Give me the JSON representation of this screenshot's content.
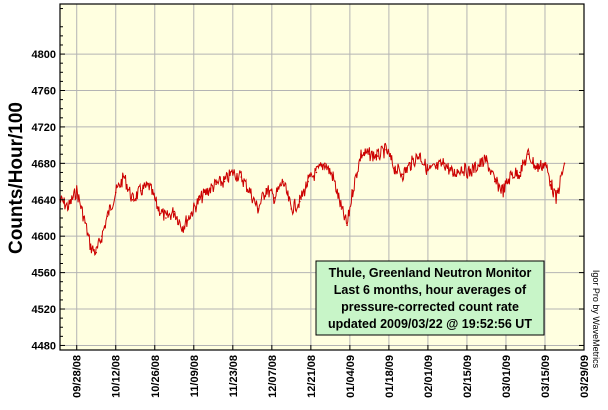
{
  "chart_data": {
    "type": "line",
    "ylabel": "Counts/Hour/100",
    "ylim": [
      4475,
      4855
    ],
    "yticks": [
      4480,
      4520,
      4560,
      4600,
      4640,
      4680,
      4720,
      4760,
      4800
    ],
    "xlim": [
      "2008-09-22",
      "2009-03-29"
    ],
    "xticks": [
      "09/28/08",
      "10/12/08",
      "10/26/08",
      "11/09/08",
      "11/23/08",
      "12/07/08",
      "12/21/08",
      "01/04/09",
      "01/18/09",
      "02/01/09",
      "02/15/09",
      "03/01/09",
      "03/15/09",
      "03/29/09"
    ],
    "grid": true,
    "series_color": "#cc0000",
    "plot_background": "#ffffe0",
    "info_box_background": "#c8f5c8",
    "series": [
      {
        "x": [
          "2008-09-22",
          "2008-09-25",
          "2008-09-28",
          "2008-10-01",
          "2008-10-03",
          "2008-10-05",
          "2008-10-07",
          "2008-10-09",
          "2008-10-12",
          "2008-10-15",
          "2008-10-18",
          "2008-10-21",
          "2008-10-24",
          "2008-10-27",
          "2008-10-30",
          "2008-11-02",
          "2008-11-05",
          "2008-11-08",
          "2008-11-11",
          "2008-11-14",
          "2008-11-17",
          "2008-11-20",
          "2008-11-23",
          "2008-11-26",
          "2008-11-29",
          "2008-12-02",
          "2008-12-05",
          "2008-12-08",
          "2008-12-11",
          "2008-12-14",
          "2008-12-17",
          "2008-12-20",
          "2008-12-23",
          "2008-12-26",
          "2008-12-29",
          "2009-01-01",
          "2009-01-03",
          "2009-01-05",
          "2009-01-08",
          "2009-01-11",
          "2009-01-14",
          "2009-01-17",
          "2009-01-20",
          "2009-01-23",
          "2009-01-26",
          "2009-01-29",
          "2009-02-01",
          "2009-02-04",
          "2009-02-07",
          "2009-02-10",
          "2009-02-13",
          "2009-02-16",
          "2009-02-19",
          "2009-02-22",
          "2009-02-25",
          "2009-02-28",
          "2009-03-03",
          "2009-03-06",
          "2009-03-09",
          "2009-03-12",
          "2009-03-15",
          "2009-03-17",
          "2009-03-19",
          "2009-03-22"
        ],
        "values": [
          4640,
          4632,
          4650,
          4615,
          4588,
          4582,
          4600,
          4622,
          4648,
          4665,
          4640,
          4650,
          4655,
          4632,
          4620,
          4627,
          4610,
          4625,
          4640,
          4650,
          4657,
          4660,
          4670,
          4665,
          4650,
          4630,
          4652,
          4642,
          4660,
          4630,
          4638,
          4660,
          4670,
          4680,
          4665,
          4630,
          4612,
          4650,
          4690,
          4690,
          4688,
          4695,
          4675,
          4668,
          4680,
          4690,
          4672,
          4675,
          4680,
          4668,
          4675,
          4670,
          4678,
          4683,
          4660,
          4650,
          4668,
          4670,
          4690,
          4675,
          4680,
          4660,
          4640,
          4680
        ]
      }
    ]
  },
  "info_box": {
    "line1": "Thule, Greenland Neutron Monitor",
    "line2": "Last 6 months, hour averages of",
    "line3": "pressure-corrected count rate",
    "line4": "updated 2009/03/22 @ 19:52:56 UT"
  },
  "credit": "Igor Pro by WaveMetrics"
}
